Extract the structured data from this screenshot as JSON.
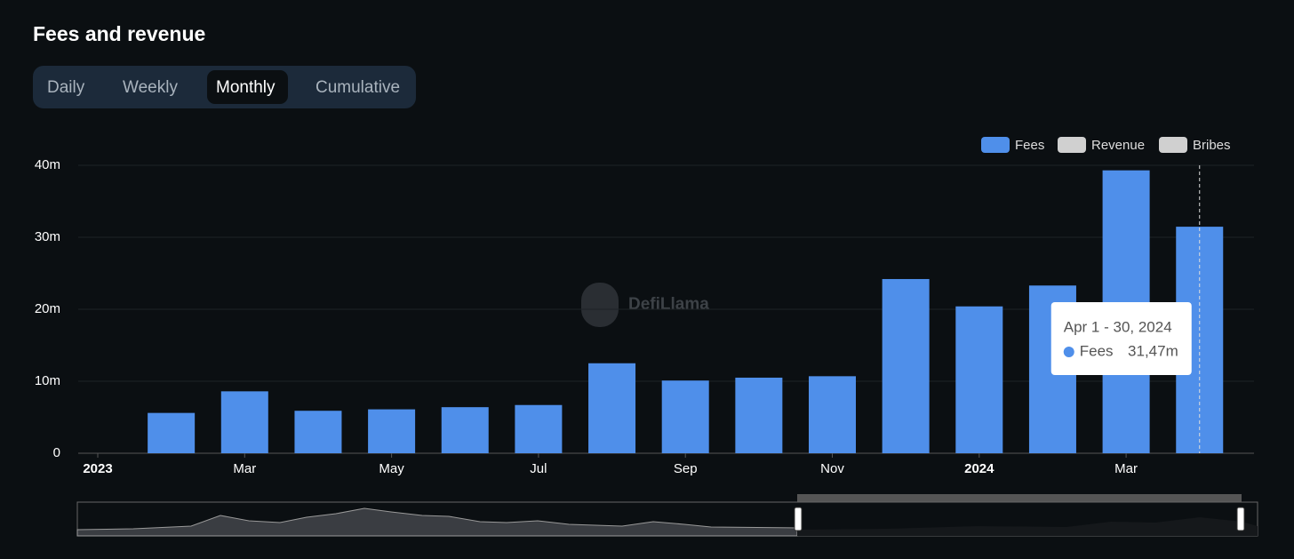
{
  "chart_data": {
    "type": "bar",
    "title": "Fees and revenue",
    "tabs": [
      "Daily",
      "Weekly",
      "Monthly",
      "Cumulative"
    ],
    "active_tab": 2,
    "watermark": "DefiLlama",
    "categories": [
      "2023",
      null,
      "Mar",
      null,
      "May",
      null,
      "Jul",
      null,
      "Sep",
      null,
      "Nov",
      null,
      "2024",
      null,
      "Mar",
      null
    ],
    "series": [
      {
        "name": "Fees",
        "color": "#4f8fea",
        "values": [
          null,
          5.6,
          8.6,
          5.9,
          6.1,
          6.4,
          6.7,
          12.5,
          10.1,
          10.5,
          10.7,
          24.2,
          20.4,
          23.3,
          39.3,
          31.47
        ],
        "value_labels": [
          null,
          null,
          null,
          null,
          null,
          null,
          null,
          null,
          null,
          null,
          null,
          null,
          null,
          null,
          null,
          "31,47m"
        ]
      }
    ],
    "inactive_legend": [
      {
        "name": "Revenue",
        "color": "#d0d0d0"
      },
      {
        "name": "Bribes",
        "color": "#d0d0d0"
      }
    ],
    "tooltip_title": "Apr 1 - 30, 2024",
    "ylim": [
      0,
      40
    ],
    "yticks": [
      0,
      {
        "value": 10,
        "label": "10m"
      },
      {
        "value": 20,
        "label": "20m"
      },
      {
        "value": 30,
        "label": "30m"
      },
      {
        "value": 40,
        "label": "40m"
      }
    ],
    "grid": true,
    "legend": "top-right"
  }
}
